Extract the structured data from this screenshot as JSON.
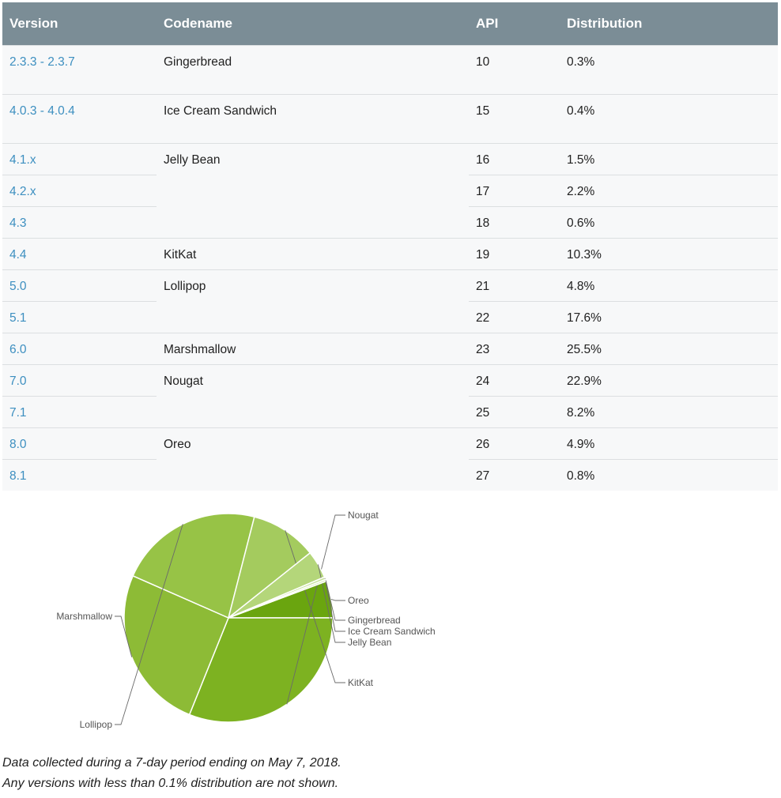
{
  "table": {
    "headers": [
      "Version",
      "Codename",
      "API",
      "Distribution"
    ],
    "rows": [
      {
        "version": "2.3.3 - 2.3.7",
        "codename": "Gingerbread",
        "api": "10",
        "distribution": "0.3%"
      },
      {
        "version": "4.0.3 - 4.0.4",
        "codename": "Ice Cream Sandwich",
        "api": "15",
        "distribution": "0.4%"
      },
      {
        "version": "4.1.x",
        "codename": "Jelly Bean",
        "api": "16",
        "distribution": "1.5%"
      },
      {
        "version": "4.2.x",
        "codename": "",
        "api": "17",
        "distribution": "2.2%"
      },
      {
        "version": "4.3",
        "codename": "",
        "api": "18",
        "distribution": "0.6%"
      },
      {
        "version": "4.4",
        "codename": "KitKat",
        "api": "19",
        "distribution": "10.3%"
      },
      {
        "version": "5.0",
        "codename": "Lollipop",
        "api": "21",
        "distribution": "4.8%"
      },
      {
        "version": "5.1",
        "codename": "",
        "api": "22",
        "distribution": "17.6%"
      },
      {
        "version": "6.0",
        "codename": "Marshmallow",
        "api": "23",
        "distribution": "25.5%"
      },
      {
        "version": "7.0",
        "codename": "Nougat",
        "api": "24",
        "distribution": "22.9%"
      },
      {
        "version": "7.1",
        "codename": "",
        "api": "25",
        "distribution": "8.2%"
      },
      {
        "version": "8.0",
        "codename": "Oreo",
        "api": "26",
        "distribution": "4.9%"
      },
      {
        "version": "8.1",
        "codename": "",
        "api": "27",
        "distribution": "0.8%"
      }
    ]
  },
  "chart_data": {
    "type": "pie",
    "categories": [
      "Oreo",
      "Nougat",
      "Marshmallow",
      "Lollipop",
      "KitKat",
      "Jelly Bean",
      "Ice Cream Sandwich",
      "Gingerbread"
    ],
    "values": [
      5.7,
      31.1,
      25.5,
      22.4,
      10.3,
      4.3,
      0.4,
      0.3
    ],
    "colors": [
      "#6aa50f",
      "#7db221",
      "#8dbb36",
      "#97c346",
      "#a4cb5e",
      "#b4d67a",
      "#c7e29b",
      "#d6eab4"
    ],
    "title": "",
    "legend": "callout labels"
  },
  "caption": {
    "line1": "Data collected during a 7-day period ending on May 7, 2018.",
    "line2": "Any versions with less than 0.1% distribution are not shown."
  }
}
